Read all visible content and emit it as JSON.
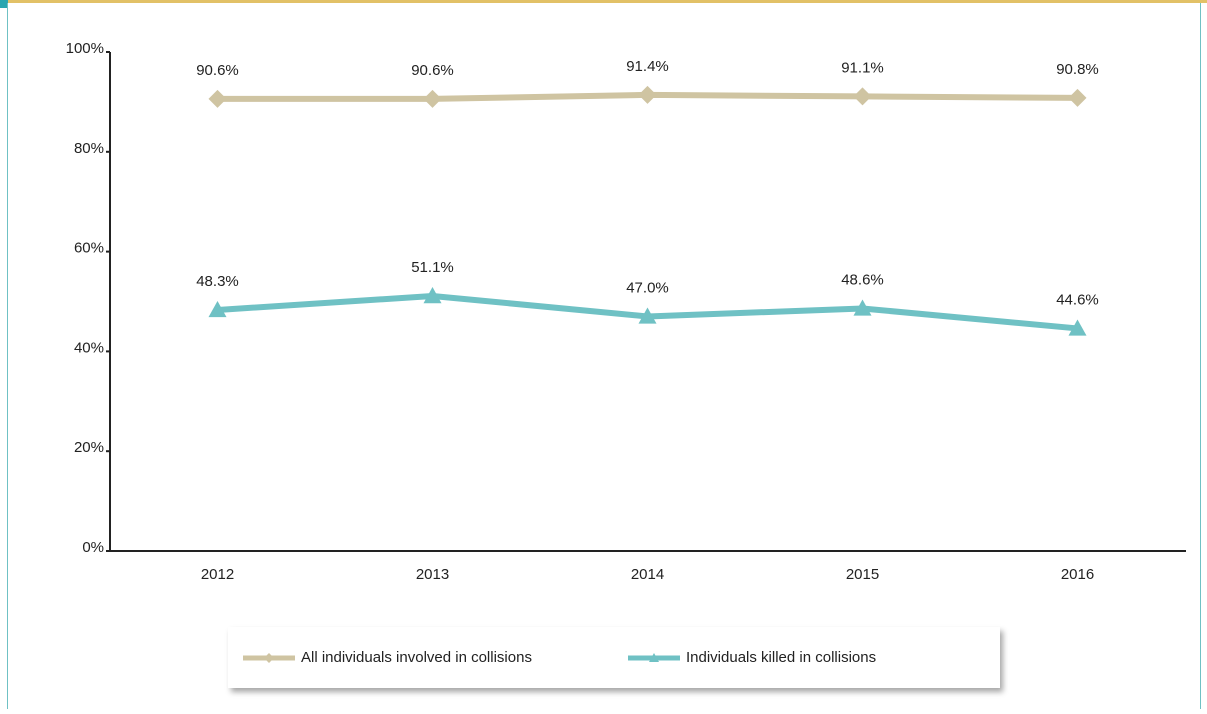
{
  "chart_data": {
    "type": "line",
    "categories": [
      "2012",
      "2013",
      "2014",
      "2015",
      "2016"
    ],
    "series": [
      {
        "name": "All individuals involved in collisions",
        "color": "#cfc4a2",
        "marker": "diamond",
        "values": [
          90.6,
          90.6,
          91.4,
          91.1,
          90.8
        ],
        "value_labels": [
          "90.6%",
          "90.6%",
          "91.4%",
          "91.1%",
          "90.8%"
        ]
      },
      {
        "name": "Individuals killed in collisions",
        "color": "#6fc1c4",
        "marker": "triangle",
        "values": [
          48.3,
          51.1,
          47.0,
          48.6,
          44.6
        ],
        "value_labels": [
          "48.3%",
          "51.1%",
          "47.0%",
          "48.6%",
          "44.6%"
        ]
      }
    ],
    "ylim": [
      0,
      100
    ],
    "yticks": [
      {
        "value": 0,
        "label": "0%"
      },
      {
        "value": 20,
        "label": "20%"
      },
      {
        "value": 40,
        "label": "40%"
      },
      {
        "value": 60,
        "label": "60%"
      },
      {
        "value": 80,
        "label": "80%"
      },
      {
        "value": 100,
        "label": "100%"
      }
    ],
    "grid": false
  }
}
